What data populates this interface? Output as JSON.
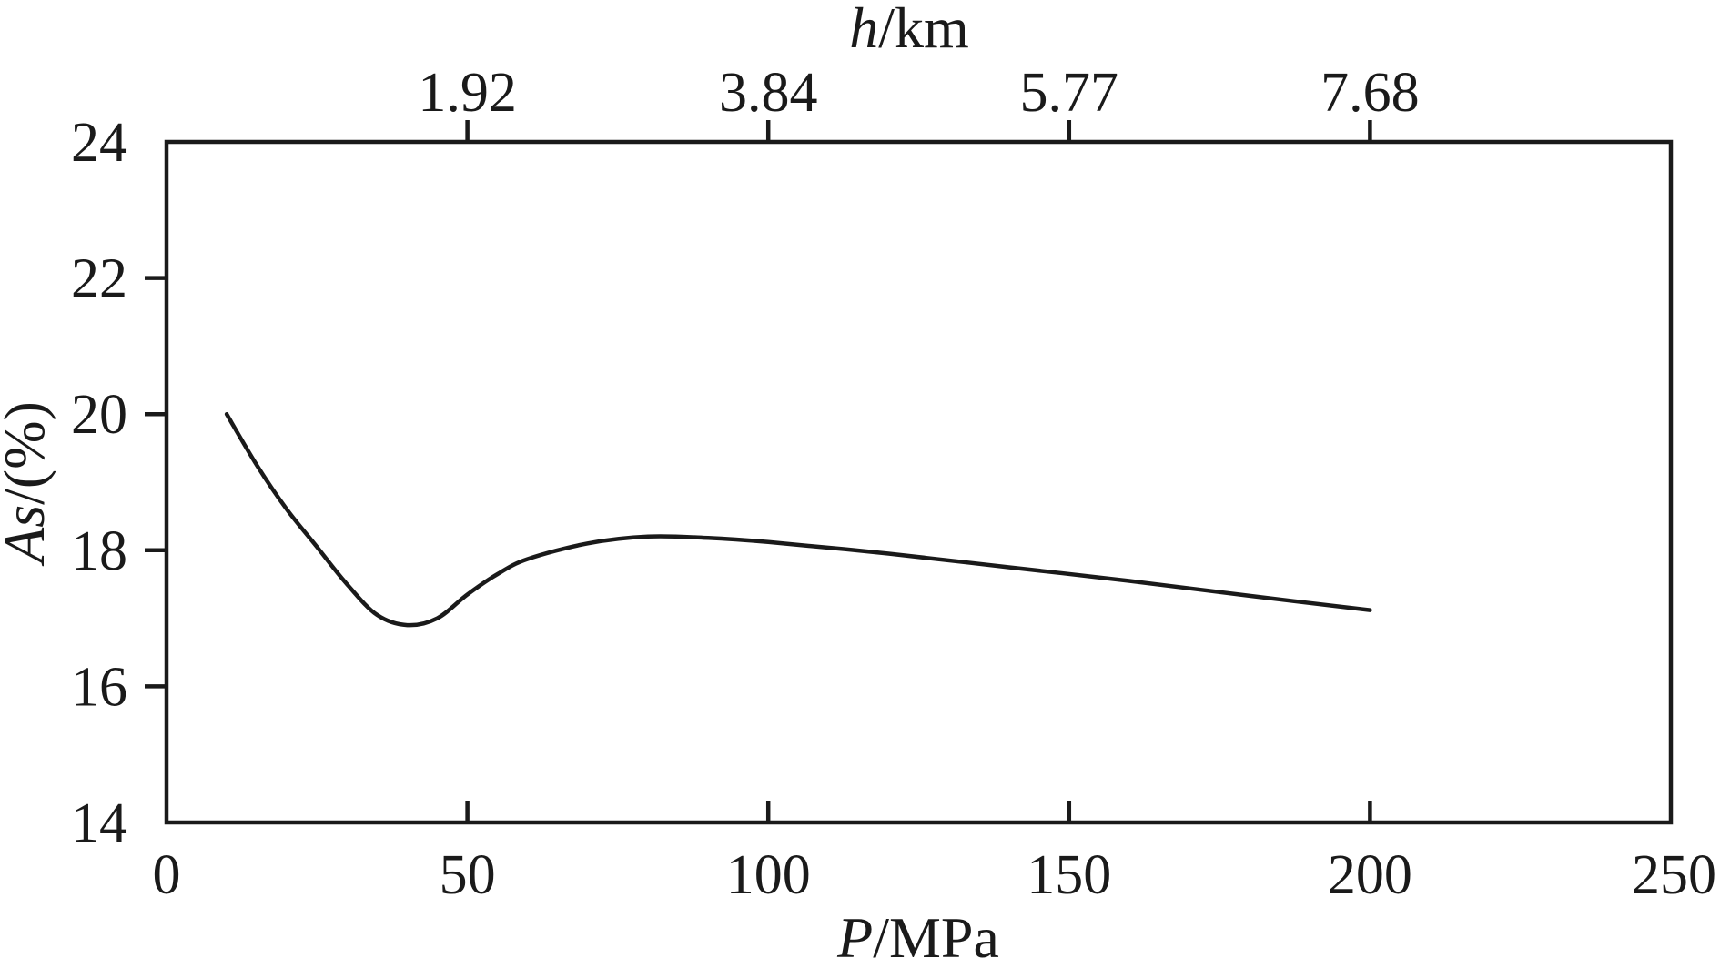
{
  "chart_data": {
    "type": "line",
    "title": "",
    "xlabel": {
      "italic": "P",
      "rest": "/MPa"
    },
    "ylabel": {
      "italic": "As",
      "rest": "/(%)"
    },
    "x2label": {
      "italic": "h",
      "rest": "/km"
    },
    "xlim": [
      0,
      250
    ],
    "ylim": [
      14,
      24
    ],
    "xticks": [
      0,
      50,
      100,
      150,
      200,
      250
    ],
    "xtick_labels": [
      "0",
      "50",
      "100",
      "150",
      "200",
      "250"
    ],
    "yticks": [
      14,
      16,
      18,
      20,
      22,
      24
    ],
    "ytick_labels": [
      "14",
      "16",
      "18",
      "20",
      "22",
      "24"
    ],
    "x2ticks": [
      50,
      100,
      150,
      200
    ],
    "x2tick_labels": [
      "1.92",
      "3.84",
      "5.77",
      "7.68"
    ],
    "grid": false,
    "legend": "none",
    "series": [
      {
        "x": [
          10,
          15,
          20,
          25,
          30,
          35,
          40,
          45,
          50,
          55,
          60,
          70,
          80,
          90,
          100,
          120,
          140,
          160,
          180,
          200
        ],
        "y": [
          20.0,
          19.25,
          18.6,
          18.05,
          17.5,
          17.05,
          16.9,
          17.0,
          17.35,
          17.65,
          17.87,
          18.1,
          18.2,
          18.18,
          18.12,
          17.95,
          17.75,
          17.55,
          17.33,
          17.12
        ]
      }
    ]
  }
}
